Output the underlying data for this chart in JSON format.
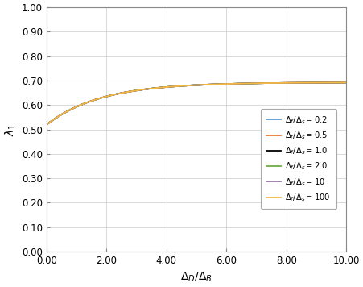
{
  "title": "",
  "xlabel": "$\\Delta_D/\\Delta_B$",
  "ylabel": "$\\lambda_1$",
  "xlim": [
    0.0,
    10.0
  ],
  "ylim": [
    0.0,
    1.0
  ],
  "xticks": [
    0.0,
    2.0,
    4.0,
    6.0,
    8.0,
    10.0
  ],
  "yticks": [
    0.0,
    0.1,
    0.2,
    0.3,
    0.4,
    0.5,
    0.6,
    0.7,
    0.8,
    0.9,
    1.0
  ],
  "xtick_labels": [
    "0.00",
    "2.00",
    "4.00",
    "6.00",
    "8.00",
    "10.00"
  ],
  "ytick_labels": [
    "0.00",
    "0.10",
    "0.20",
    "0.30",
    "0.40",
    "0.50",
    "0.60",
    "0.70",
    "0.80",
    "0.90",
    "1.00"
  ],
  "series": [
    {
      "label": "$\\Delta_f/\\Delta_s = 0.2$",
      "color": "#5b9bd5",
      "ratio": 0.2
    },
    {
      "label": "$\\Delta_f/\\Delta_s = 0.5$",
      "color": "#ed7d31",
      "ratio": 0.5
    },
    {
      "label": "$\\Delta_f/\\Delta_s = 1.0$",
      "color": "#000000",
      "ratio": 1.0
    },
    {
      "label": "$\\Delta_f/\\Delta_s = 2.0$",
      "color": "#70ad47",
      "ratio": 2.0
    },
    {
      "label": "$\\Delta_f/\\Delta_s = 10$",
      "color": "#9e74b3",
      "ratio": 10.0
    },
    {
      "label": "$\\Delta_f/\\Delta_s = 100$",
      "color": "#f4b942",
      "ratio": 100.0
    }
  ],
  "legend_loc": "center right",
  "background_color": "#ffffff",
  "grid_color": "#d3d3d3",
  "curve_formula": {
    "start": 0.52,
    "end": 0.693,
    "decay": 0.55
  }
}
